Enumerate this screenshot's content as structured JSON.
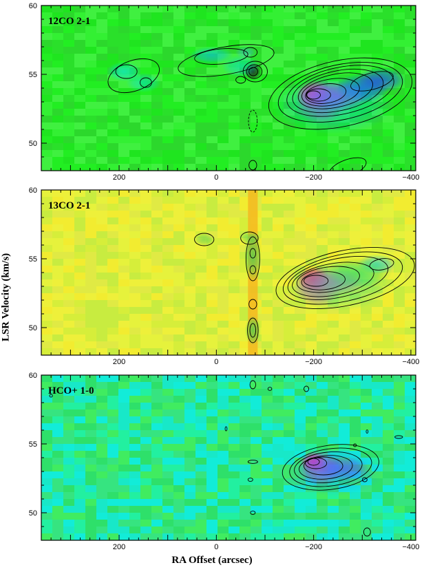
{
  "figure": {
    "ylabel": "LSR Velocity (km/s)",
    "xlabel": "RA Offset (arcsec)"
  },
  "chart_data": [
    {
      "type": "heatmap",
      "title": "12CO 2-1",
      "xlabel": "RA Offset (arcsec)",
      "ylabel": "LSR Velocity (km/s)",
      "xlim": [
        360,
        -410
      ],
      "ylim": [
        48,
        60
      ],
      "x_ticks": [
        200,
        0,
        -200,
        -400
      ],
      "x_tick_labels": [
        "200",
        "0",
        "−200",
        "−400"
      ],
      "y_ticks": [
        50,
        55,
        60
      ],
      "y_tick_labels": [
        "50",
        "55",
        "60"
      ],
      "background": "#22ee22",
      "noise_colors": [
        "#22ee22",
        "#2ae02a",
        "#33f033",
        "#1fe51f",
        "#40f040",
        "#2cd82c"
      ],
      "features": [
        {
          "x": -200,
          "y": 53.5,
          "sx": 20,
          "sy": 0.6,
          "color": "#ff3399",
          "opacity": 0.95
        },
        {
          "x": -215,
          "y": 53.0,
          "sx": 30,
          "sy": 0.9,
          "color": "#dd33dd",
          "opacity": 0.7
        },
        {
          "x": -250,
          "y": 53.4,
          "sx": 35,
          "sy": 0.6,
          "color": "#aa33ee",
          "opacity": 0.75
        },
        {
          "x": -300,
          "y": 54.0,
          "sx": 30,
          "sy": 0.6,
          "color": "#2255ee",
          "opacity": 0.8
        },
        {
          "x": -340,
          "y": 54.6,
          "sx": 28,
          "sy": 0.5,
          "color": "#2244ff",
          "opacity": 0.7
        },
        {
          "x": -240,
          "y": 52.8,
          "sx": 70,
          "sy": 1.2,
          "color": "#00c0ff",
          "opacity": 0.45
        },
        {
          "x": -75,
          "y": 55.2,
          "sx": 10,
          "sy": 0.35,
          "color": "#222222",
          "opacity": 0.85
        },
        {
          "x": -50,
          "y": 55.6,
          "sx": 22,
          "sy": 0.45,
          "color": "#00d0ff",
          "opacity": 0.45
        },
        {
          "x": 10,
          "y": 56.4,
          "sx": 25,
          "sy": 0.35,
          "color": "#00bbff",
          "opacity": 0.55
        },
        {
          "x": -60,
          "y": 56.6,
          "sx": 12,
          "sy": 0.25,
          "color": "#44aaff",
          "opacity": 0.45
        },
        {
          "x": 190,
          "y": 55.2,
          "sx": 20,
          "sy": 0.4,
          "color": "#00e0ff",
          "opacity": 0.55
        },
        {
          "x": 150,
          "y": 54.4,
          "sx": 20,
          "sy": 0.4,
          "color": "#00e0ff",
          "opacity": 0.45
        }
      ],
      "contours": [
        {
          "cx": -255,
          "cy": 53.6,
          "rx": 150,
          "ry": 2.4,
          "rot": -12
        },
        {
          "cx": -255,
          "cy": 53.7,
          "rx": 130,
          "ry": 2.0,
          "rot": -12
        },
        {
          "cx": -255,
          "cy": 53.8,
          "rx": 112,
          "ry": 1.7,
          "rot": -12
        },
        {
          "cx": -250,
          "cy": 53.8,
          "rx": 95,
          "ry": 1.45,
          "rot": -12
        },
        {
          "cx": -245,
          "cy": 53.8,
          "rx": 78,
          "ry": 1.2,
          "rot": -12
        },
        {
          "cx": -235,
          "cy": 53.7,
          "rx": 60,
          "ry": 0.95,
          "rot": -10
        },
        {
          "cx": -225,
          "cy": 53.6,
          "rx": 42,
          "ry": 0.7,
          "rot": -8
        },
        {
          "cx": -210,
          "cy": 53.5,
          "rx": 25,
          "ry": 0.45,
          "rot": 0
        },
        {
          "cx": -320,
          "cy": 54.5,
          "rx": 45,
          "ry": 0.6,
          "rot": -15
        },
        {
          "cx": -200,
          "cy": 53.5,
          "rx": 14,
          "ry": 0.3,
          "rot": 0
        },
        {
          "cx": 170,
          "cy": 54.9,
          "rx": 55,
          "ry": 1.1,
          "rot": -20
        },
        {
          "cx": 185,
          "cy": 55.2,
          "rx": 22,
          "ry": 0.5,
          "rot": 0
        },
        {
          "cx": 145,
          "cy": 54.4,
          "rx": 12,
          "ry": 0.35,
          "rot": 0
        },
        {
          "cx": -80,
          "cy": 55.2,
          "rx": 25,
          "ry": 0.75,
          "rot": 0
        },
        {
          "cx": -78,
          "cy": 55.2,
          "rx": 16,
          "ry": 0.5,
          "rot": 0
        },
        {
          "cx": -76,
          "cy": 55.2,
          "rx": 9,
          "ry": 0.3,
          "rot": 0
        },
        {
          "cx": -20,
          "cy": 56.0,
          "rx": 100,
          "ry": 1.0,
          "rot": -10
        },
        {
          "cx": -10,
          "cy": 56.3,
          "rx": 55,
          "ry": 0.55,
          "rot": -5
        },
        {
          "cx": -70,
          "cy": 56.6,
          "rx": 14,
          "ry": 0.35,
          "rot": 0
        },
        {
          "cx": -50,
          "cy": 54.6,
          "rx": 10,
          "ry": 0.25,
          "rot": 0
        },
        {
          "cx": -75,
          "cy": 51.6,
          "rx": 9,
          "ry": 0.8,
          "rot": 0,
          "dashed": true
        },
        {
          "cx": -75,
          "cy": 48.4,
          "rx": 8,
          "ry": 0.35,
          "rot": 0
        },
        {
          "cx": -270,
          "cy": 48.2,
          "rx": 40,
          "ry": 0.6,
          "rot": -20
        }
      ]
    },
    {
      "type": "heatmap",
      "title": "13CO 2-1",
      "xlabel": "RA Offset (arcsec)",
      "ylabel": "LSR Velocity (km/s)",
      "xlim": [
        360,
        -410
      ],
      "ylim": [
        48,
        60
      ],
      "x_ticks": [
        200,
        0,
        -200,
        -400
      ],
      "x_tick_labels": [
        "200",
        "0",
        "−200",
        "−400"
      ],
      "y_ticks": [
        50,
        55,
        60
      ],
      "y_tick_labels": [
        "50",
        "55",
        "60"
      ],
      "background": "#dff03a",
      "noise_colors": [
        "#e6f23c",
        "#d6ee3a",
        "#eef03a",
        "#f2ec30",
        "#c8ec40",
        "#e0ea44"
      ],
      "band": {
        "x": -75,
        "width": 20,
        "color": "#f5b820"
      },
      "features": [
        {
          "x": -200,
          "y": 53.5,
          "sx": 18,
          "sy": 0.5,
          "color": "#ff2255",
          "opacity": 0.95
        },
        {
          "x": -210,
          "y": 53.0,
          "sx": 28,
          "sy": 0.8,
          "color": "#ee33cc",
          "opacity": 0.75
        },
        {
          "x": -250,
          "y": 53.3,
          "sx": 30,
          "sy": 0.5,
          "color": "#cc44dd",
          "opacity": 0.6
        },
        {
          "x": -330,
          "y": 54.6,
          "sx": 22,
          "sy": 0.4,
          "color": "#00c8ee",
          "opacity": 0.6
        },
        {
          "x": -250,
          "y": 53.0,
          "sx": 60,
          "sy": 1.0,
          "color": "#33dd88",
          "opacity": 0.55
        },
        {
          "x": -290,
          "y": 54.0,
          "sx": 40,
          "sy": 0.6,
          "color": "#22dd66",
          "opacity": 0.6
        },
        {
          "x": -75,
          "y": 55.2,
          "sx": 10,
          "sy": 1.0,
          "color": "#33cc55",
          "opacity": 0.7
        },
        {
          "x": -75,
          "y": 49.8,
          "sx": 9,
          "sy": 0.6,
          "color": "#33cc55",
          "opacity": 0.7
        },
        {
          "x": 25,
          "y": 56.4,
          "sx": 12,
          "sy": 0.25,
          "color": "#44cc55",
          "opacity": 0.55
        },
        {
          "x": -70,
          "y": 56.5,
          "sx": 12,
          "sy": 0.25,
          "color": "#44cc55",
          "opacity": 0.55
        }
      ],
      "contours": [
        {
          "cx": -265,
          "cy": 53.6,
          "rx": 145,
          "ry": 2.0,
          "rot": -12
        },
        {
          "cx": -260,
          "cy": 53.6,
          "rx": 125,
          "ry": 1.7,
          "rot": -12
        },
        {
          "cx": -250,
          "cy": 53.6,
          "rx": 105,
          "ry": 1.4,
          "rot": -12
        },
        {
          "cx": -240,
          "cy": 53.5,
          "rx": 85,
          "ry": 1.15,
          "rot": -10
        },
        {
          "cx": -230,
          "cy": 53.5,
          "rx": 65,
          "ry": 0.9,
          "rot": -8
        },
        {
          "cx": -220,
          "cy": 53.4,
          "rx": 45,
          "ry": 0.65,
          "rot": -5
        },
        {
          "cx": -205,
          "cy": 53.4,
          "rx": 25,
          "ry": 0.4,
          "rot": 0
        },
        {
          "cx": -340,
          "cy": 54.6,
          "rx": 25,
          "ry": 0.4,
          "rot": -10
        },
        {
          "cx": -75,
          "cy": 55.0,
          "rx": 14,
          "ry": 1.6,
          "rot": 0
        },
        {
          "cx": -75,
          "cy": 55.4,
          "rx": 6,
          "ry": 0.35,
          "rot": 0
        },
        {
          "cx": -75,
          "cy": 54.2,
          "rx": 6,
          "ry": 0.3,
          "rot": 0
        },
        {
          "cx": -75,
          "cy": 51.7,
          "rx": 8,
          "ry": 0.35,
          "rot": 0
        },
        {
          "cx": -75,
          "cy": 49.8,
          "rx": 11,
          "ry": 0.9,
          "rot": 0
        },
        {
          "cx": -75,
          "cy": 49.8,
          "rx": 6,
          "ry": 0.5,
          "rot": 0
        },
        {
          "cx": 25,
          "cy": 56.4,
          "rx": 20,
          "ry": 0.45,
          "rot": 0
        },
        {
          "cx": -68,
          "cy": 56.5,
          "rx": 18,
          "ry": 0.45,
          "rot": 0
        }
      ]
    },
    {
      "type": "heatmap",
      "title": "HCO+ 1-0",
      "xlabel": "RA Offset (arcsec)",
      "ylabel": "LSR Velocity (km/s)",
      "xlim": [
        360,
        -410
      ],
      "ylim": [
        48,
        60
      ],
      "x_ticks": [
        200,
        0,
        -200,
        -400
      ],
      "x_tick_labels": [
        "200",
        "0",
        "−200",
        "−400"
      ],
      "y_ticks": [
        50,
        55,
        60
      ],
      "y_tick_labels": [
        "50",
        "55",
        "60"
      ],
      "background": "#30e868",
      "noise_colors": [
        "#2ee06a",
        "#22f0a0",
        "#18e8c8",
        "#40ec60",
        "#12ecd8",
        "#36e480"
      ],
      "features": [
        {
          "x": -200,
          "y": 53.7,
          "sx": 15,
          "sy": 0.4,
          "color": "#ff2288",
          "opacity": 0.95
        },
        {
          "x": -215,
          "y": 53.2,
          "sx": 25,
          "sy": 0.7,
          "color": "#dd22dd",
          "opacity": 0.75
        },
        {
          "x": -260,
          "y": 53.2,
          "sx": 30,
          "sy": 0.5,
          "color": "#7733ee",
          "opacity": 0.7
        },
        {
          "x": -240,
          "y": 53.0,
          "sx": 60,
          "sy": 1.0,
          "color": "#2299ff",
          "opacity": 0.45
        }
      ],
      "contours": [
        {
          "cx": -235,
          "cy": 53.3,
          "rx": 100,
          "ry": 1.6,
          "rot": -8
        },
        {
          "cx": -235,
          "cy": 53.3,
          "rx": 85,
          "ry": 1.35,
          "rot": -8
        },
        {
          "cx": -230,
          "cy": 53.3,
          "rx": 70,
          "ry": 1.1,
          "rot": -6
        },
        {
          "cx": -225,
          "cy": 53.3,
          "rx": 55,
          "ry": 0.85,
          "rot": -5
        },
        {
          "cx": -220,
          "cy": 53.4,
          "rx": 40,
          "ry": 0.65,
          "rot": 0
        },
        {
          "cx": -205,
          "cy": 53.6,
          "rx": 22,
          "ry": 0.4,
          "rot": 0
        },
        {
          "cx": -200,
          "cy": 53.7,
          "rx": 12,
          "ry": 0.25,
          "rot": 0
        },
        {
          "cx": -75,
          "cy": 59.3,
          "rx": 6,
          "ry": 0.3,
          "rot": 0
        },
        {
          "cx": -75,
          "cy": 53.7,
          "rx": 10,
          "ry": 0.12,
          "rot": 0
        },
        {
          "cx": -75,
          "cy": 50.0,
          "rx": 5,
          "ry": 0.12,
          "rot": 0
        },
        {
          "cx": 340,
          "cy": 58.5,
          "rx": 3,
          "ry": 0.1,
          "rot": 0
        },
        {
          "cx": -110,
          "cy": 59.0,
          "rx": 4,
          "ry": 0.12,
          "rot": 0
        },
        {
          "cx": -185,
          "cy": 59.0,
          "rx": 5,
          "ry": 0.2,
          "rot": 0
        },
        {
          "cx": -70,
          "cy": 52.4,
          "rx": 5,
          "ry": 0.12,
          "rot": 0
        },
        {
          "cx": -20,
          "cy": 56.1,
          "rx": 2,
          "ry": 0.15,
          "rot": 0
        },
        {
          "cx": -305,
          "cy": 52.4,
          "rx": 5,
          "ry": 0.15,
          "rot": 0
        },
        {
          "cx": -375,
          "cy": 55.5,
          "rx": 8,
          "ry": 0.1,
          "rot": 0
        },
        {
          "cx": -310,
          "cy": 48.6,
          "rx": 7,
          "ry": 0.3,
          "rot": 0
        },
        {
          "cx": -310,
          "cy": 55.9,
          "rx": 2,
          "ry": 0.12,
          "rot": 0
        },
        {
          "cx": -285,
          "cy": 54.9,
          "rx": 3,
          "ry": 0.1,
          "rot": 0
        }
      ]
    }
  ]
}
